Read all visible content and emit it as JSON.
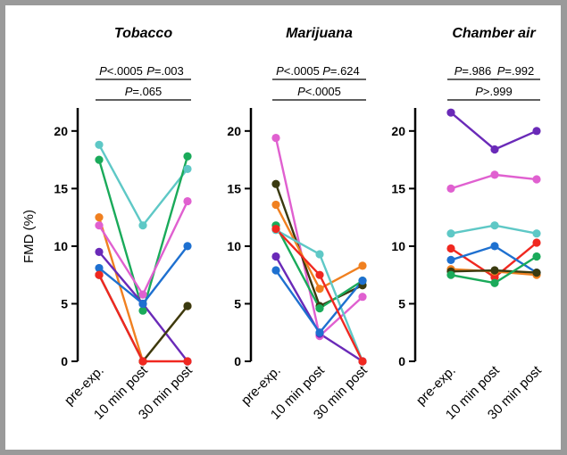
{
  "chart_data": {
    "type": "line",
    "ylabel": "FMD (%)",
    "ylim": [
      0,
      22
    ],
    "yticks": [
      0,
      5,
      10,
      15,
      20
    ],
    "categories": [
      "pre-exp.",
      "10 min post",
      "30 min post"
    ],
    "panels": [
      {
        "title": "Tobacco",
        "comparisons": [
          {
            "label": "P<.0005",
            "from": 0,
            "to": 1,
            "level": 1
          },
          {
            "label": "P=.003",
            "from": 1,
            "to": 2,
            "level": 1
          },
          {
            "label": "P=.065",
            "from": 0,
            "to": 2,
            "level": 0
          }
        ],
        "series": [
          {
            "color": "#5ec8c6",
            "values": [
              18.8,
              11.8,
              16.7
            ]
          },
          {
            "color": "#1aaa5a",
            "values": [
              17.5,
              4.4,
              17.8
            ]
          },
          {
            "color": "#f08020",
            "values": [
              12.5,
              0,
              4.8
            ]
          },
          {
            "color": "#e060d0",
            "values": [
              11.8,
              5.8,
              13.9
            ]
          },
          {
            "color": "#6a2ab8",
            "values": [
              9.5,
              5.0,
              0
            ]
          },
          {
            "color": "#1e70d0",
            "values": [
              8.1,
              5.0,
              10.0
            ]
          },
          {
            "color": "#3a3a10",
            "values": [
              7.5,
              0,
              4.8
            ]
          },
          {
            "color": "#f02820",
            "values": [
              7.5,
              0,
              0
            ]
          }
        ]
      },
      {
        "title": "Marijuana",
        "comparisons": [
          {
            "label": "P<.0005",
            "from": 0,
            "to": 1,
            "level": 1
          },
          {
            "label": "P=.624",
            "from": 1,
            "to": 2,
            "level": 1
          },
          {
            "label": "P<.0005",
            "from": 0,
            "to": 2,
            "level": 0
          }
        ],
        "series": [
          {
            "color": "#e060d0",
            "values": [
              19.4,
              2.2,
              5.6
            ]
          },
          {
            "color": "#3a3a10",
            "values": [
              15.4,
              4.8,
              6.6
            ]
          },
          {
            "color": "#f08020",
            "values": [
              13.6,
              6.3,
              8.3
            ]
          },
          {
            "color": "#1aaa5a",
            "values": [
              11.8,
              4.6,
              7.0
            ]
          },
          {
            "color": "#5ec8c6",
            "values": [
              11.4,
              9.3,
              0
            ]
          },
          {
            "color": "#6a2ab8",
            "values": [
              9.1,
              2.4,
              0
            ]
          },
          {
            "color": "#1e70d0",
            "values": [
              7.9,
              2.5,
              7.0
            ]
          },
          {
            "color": "#f02820",
            "values": [
              11.5,
              7.5,
              0
            ]
          }
        ]
      },
      {
        "title": "Chamber air",
        "comparisons": [
          {
            "label": "P=.986",
            "from": 0,
            "to": 1,
            "level": 1
          },
          {
            "label": "P=.992",
            "from": 1,
            "to": 2,
            "level": 1
          },
          {
            "label": "P>.999",
            "from": 0,
            "to": 2,
            "level": 0
          }
        ],
        "series": [
          {
            "color": "#6a2ab8",
            "values": [
              21.6,
              18.4,
              20.0
            ]
          },
          {
            "color": "#e060d0",
            "values": [
              15.0,
              16.2,
              15.8
            ]
          },
          {
            "color": "#5ec8c6",
            "values": [
              11.1,
              11.8,
              11.1
            ]
          },
          {
            "color": "#f02820",
            "values": [
              9.8,
              7.3,
              10.3
            ]
          },
          {
            "color": "#1e70d0",
            "values": [
              8.8,
              10.0,
              7.7
            ]
          },
          {
            "color": "#f08020",
            "values": [
              8.0,
              7.8,
              7.5
            ]
          },
          {
            "color": "#3a3a10",
            "values": [
              7.8,
              7.9,
              7.7
            ]
          },
          {
            "color": "#1aaa5a",
            "values": [
              7.5,
              6.8,
              9.1
            ]
          }
        ]
      }
    ]
  }
}
